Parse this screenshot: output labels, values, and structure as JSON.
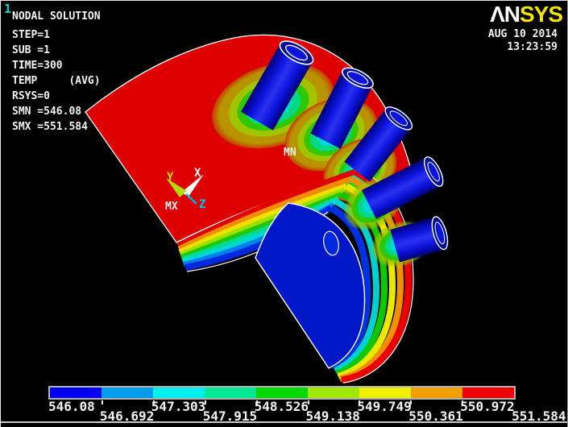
{
  "header": {
    "plot_number": "1",
    "logo_an": "ΛN",
    "logo_sys": "SYS",
    "date": "AUG 10 2014",
    "time": "13:23:59"
  },
  "info_panel": {
    "lines": [
      "NODAL SOLUTION",
      "STEP=1",
      "SUB =1",
      "TIME=300",
      "TEMP     (AVG)",
      "RSYS=0",
      "SMN =546.08",
      "SMX =551.584"
    ]
  },
  "plot": {
    "min_marker": "MN",
    "max_marker": "MX",
    "triad": {
      "x": "X",
      "y": "Y",
      "z": "Z"
    },
    "colors": {
      "plate_red": "#de0000",
      "plate_side_dark": "#9c0000",
      "shell_blue": "#0018c8",
      "tube_blue": "#0c14dc",
      "outline_white": "#ffffff"
    }
  },
  "legend": {
    "min": "546.08",
    "max": "551.584",
    "values": [
      "546.08",
      "546.692",
      "547.303",
      "547.915",
      "548.526",
      "549.138",
      "549.749",
      "550.361",
      "550.972",
      "551.584"
    ],
    "colors": [
      "#0000f0",
      "#009cf0",
      "#00f0f0",
      "#00e896",
      "#00d800",
      "#a0e800",
      "#f0f000",
      "#f0a000",
      "#f00000"
    ]
  }
}
